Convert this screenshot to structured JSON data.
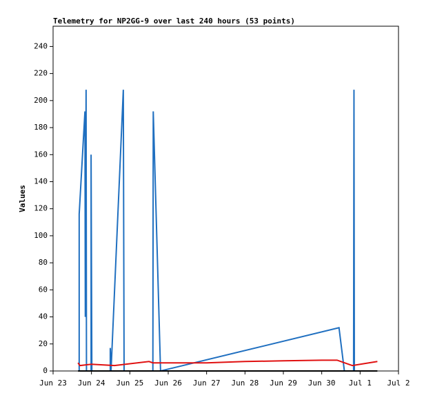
{
  "chart_data": {
    "type": "line",
    "title": "Telemetry for NP2GG-9 over last 240 hours (53 points)",
    "ylabel": "Values",
    "xlim": [
      0,
      9
    ],
    "ylim": [
      0,
      255
    ],
    "xticks": [
      {
        "value": 0,
        "label": "Jun 23"
      },
      {
        "value": 1,
        "label": "Jun 24"
      },
      {
        "value": 2,
        "label": "Jun 25"
      },
      {
        "value": 3,
        "label": "Jun 26"
      },
      {
        "value": 4,
        "label": "Jun 27"
      },
      {
        "value": 5,
        "label": "Jun 28"
      },
      {
        "value": 6,
        "label": "Jun 29"
      },
      {
        "value": 7,
        "label": "Jun 30"
      },
      {
        "value": 8,
        "label": "Jul 1"
      },
      {
        "value": 9,
        "label": "Jul 2"
      }
    ],
    "yticks": [
      0,
      20,
      40,
      60,
      80,
      100,
      120,
      140,
      160,
      180,
      200,
      220,
      240
    ],
    "grid": false,
    "series": [
      {
        "color": "#1f6fc0",
        "x": [
          0.68,
          0.68,
          0.83,
          0.84,
          0.86,
          0.87,
          0.99,
          0.99,
          1.01,
          1.49,
          1.49,
          1.51,
          1.83,
          1.85,
          2.6,
          2.61,
          2.8,
          7.45,
          7.59,
          7.83,
          7.84,
          7.85
        ],
        "values": [
          0,
          116,
          192,
          40,
          208,
          0,
          0,
          160,
          0,
          0,
          17,
          0,
          208,
          0,
          0,
          192,
          0,
          32,
          0,
          0,
          208,
          0
        ]
      },
      {
        "color": "#e01010",
        "x": [
          0.65,
          0.7,
          1.0,
          1.6,
          2.5,
          2.6,
          4.0,
          5.0,
          6.0,
          7.0,
          7.4,
          7.8,
          8.45
        ],
        "values": [
          6,
          4,
          5,
          4,
          7,
          6,
          6,
          7,
          7.5,
          8,
          8,
          4,
          7
        ]
      },
      {
        "color": "#000000",
        "x": [
          0.65,
          8.45
        ],
        "values": [
          0,
          0
        ]
      }
    ]
  }
}
